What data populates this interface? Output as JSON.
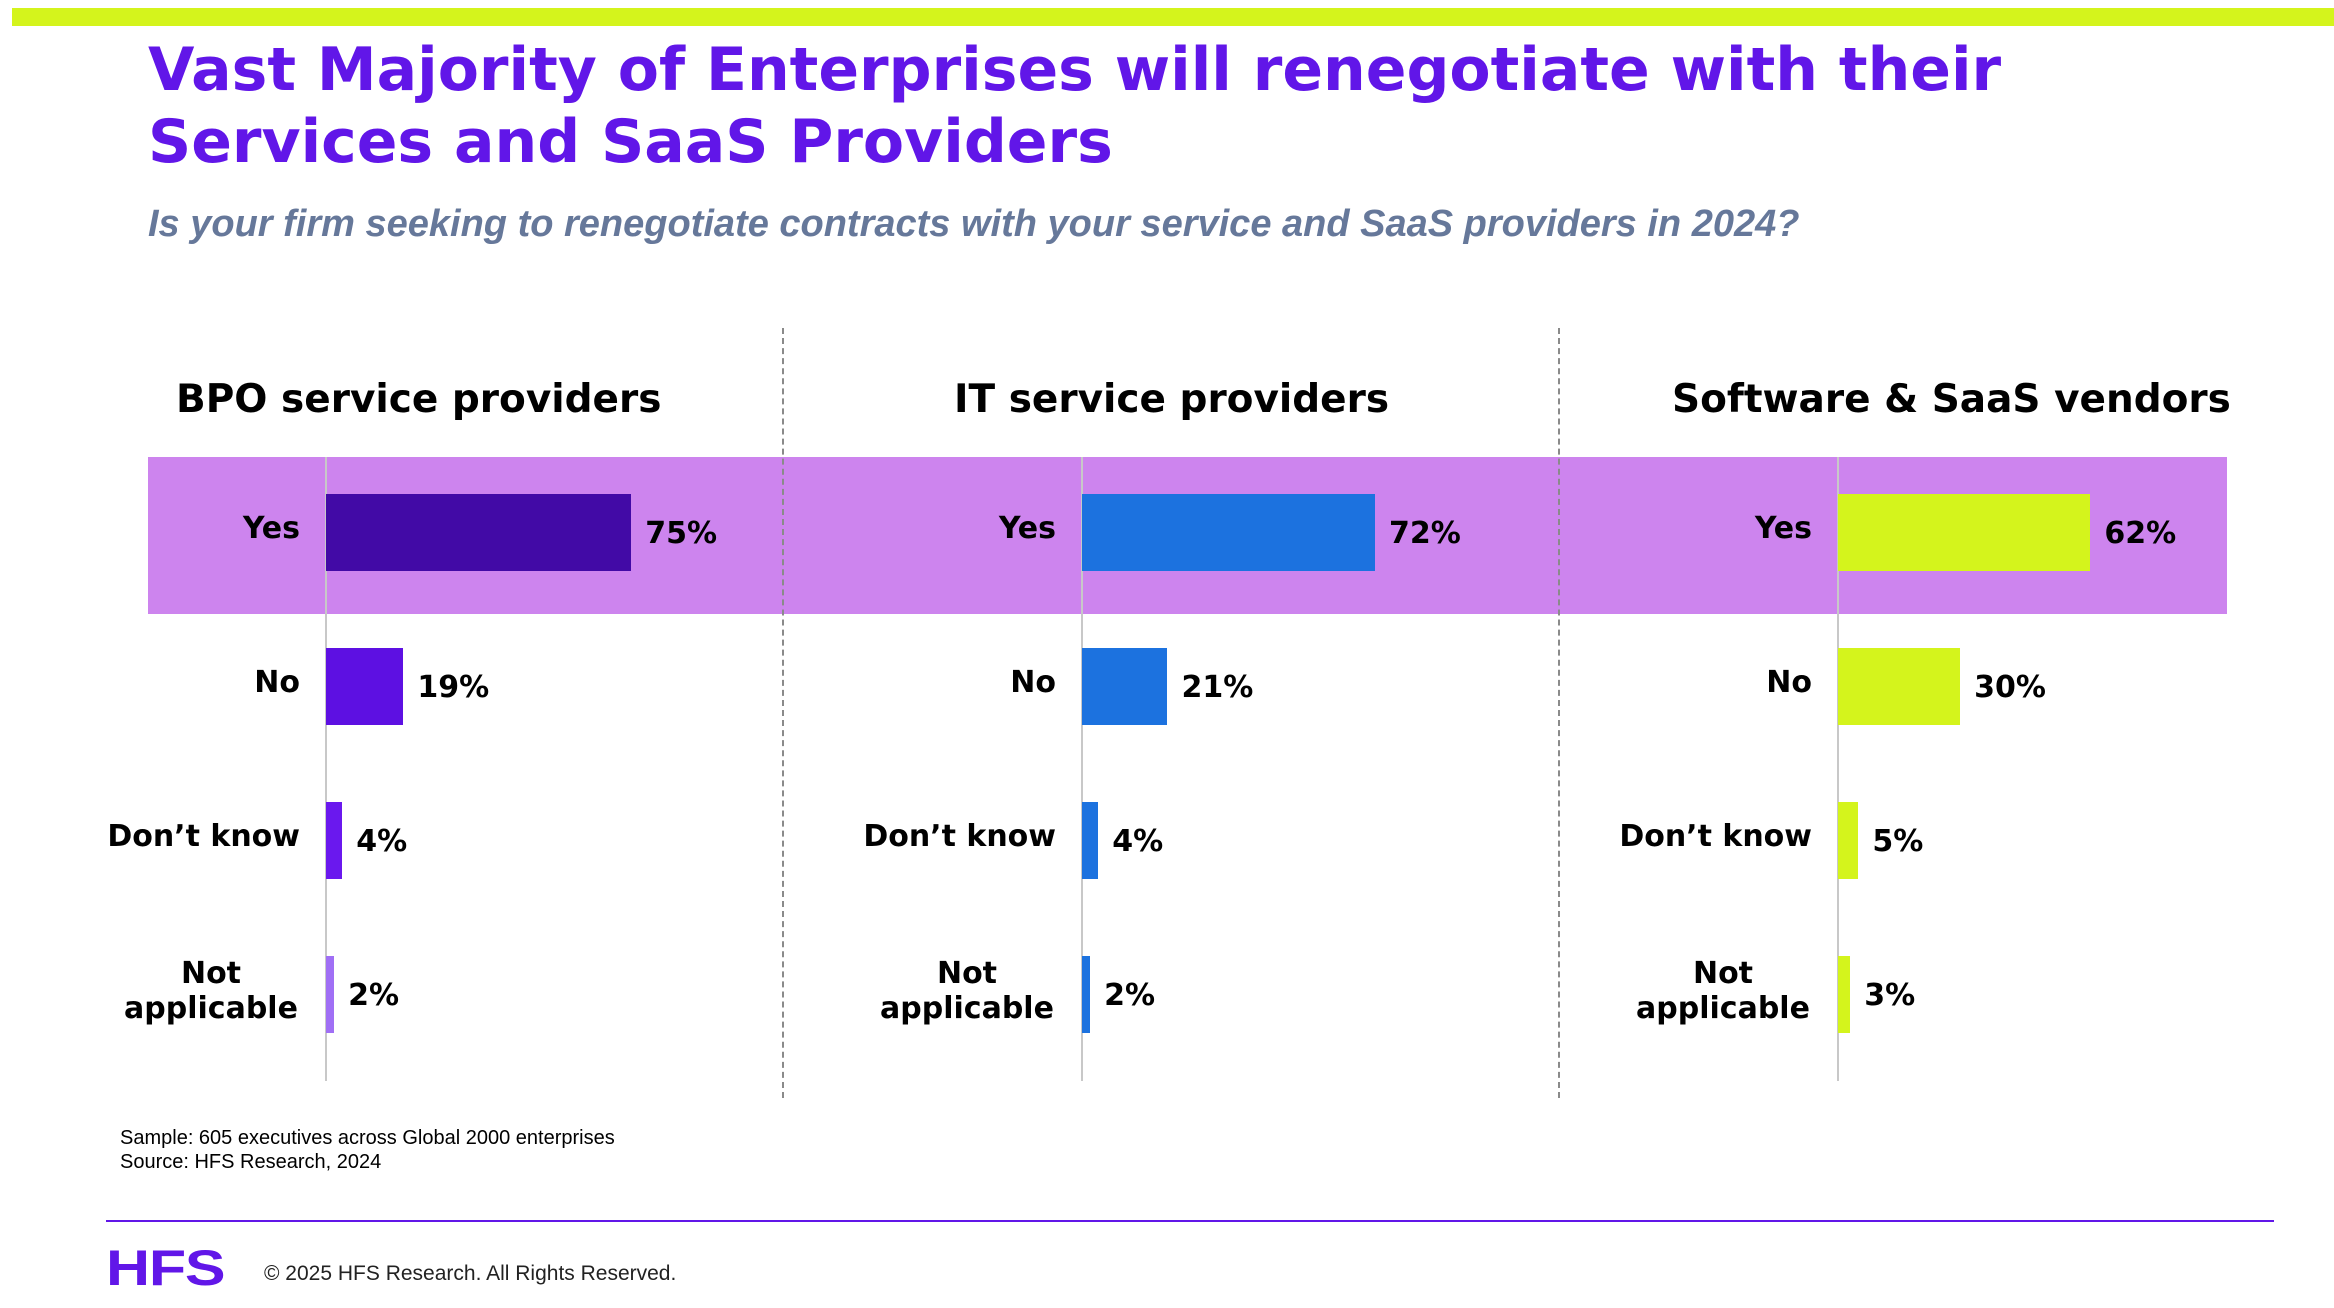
{
  "title": "Vast Majority of Enterprises will renegotiate with their Services and SaaS Providers",
  "subtitle": "Is your firm seeking to renegotiate contracts with your service and SaaS providers in 2024?",
  "colors": {
    "accent_bar": "#d4f41c",
    "title": "#6116e8",
    "subtitle": "#66789a",
    "highlight_band": "#cd84ee",
    "footer_line": "#6116e8",
    "logo": "#6116e8"
  },
  "chart_data": [
    {
      "type": "bar",
      "orientation": "horizontal",
      "title": "BPO service providers",
      "categories": [
        "Yes",
        "No",
        "Don’t know",
        "Not applicable"
      ],
      "values": [
        75,
        19,
        4,
        2
      ],
      "value_labels": [
        "75%",
        "19%",
        "4%",
        "2%"
      ],
      "colors": [
        "#420aa6",
        "#5d10e2",
        "#6a18ee",
        "#a06ff5"
      ],
      "xlim": [
        0,
        100
      ],
      "unit": "%",
      "highlighted_category": "Yes",
      "grid": false
    },
    {
      "type": "bar",
      "orientation": "horizontal",
      "title": "IT service providers",
      "categories": [
        "Yes",
        "No",
        "Don’t know",
        "Not applicable"
      ],
      "values": [
        72,
        21,
        4,
        2
      ],
      "value_labels": [
        "72%",
        "21%",
        "4%",
        "2%"
      ],
      "colors": [
        "#1c72df",
        "#1c72df",
        "#1c72df",
        "#1c72df"
      ],
      "xlim": [
        0,
        100
      ],
      "unit": "%",
      "highlighted_category": "Yes",
      "grid": false
    },
    {
      "type": "bar",
      "orientation": "horizontal",
      "title": "Software & SaaS vendors",
      "categories": [
        "Yes",
        "No",
        "Don’t know",
        "Not applicable"
      ],
      "values": [
        62,
        30,
        5,
        3
      ],
      "value_labels": [
        "62%",
        "30%",
        "5%",
        "3%"
      ],
      "colors": [
        "#d4f41c",
        "#d4f41c",
        "#d4f41c",
        "#d4f41c"
      ],
      "xlim": [
        0,
        100
      ],
      "unit": "%",
      "highlighted_category": "Yes",
      "grid": false
    }
  ],
  "notes": {
    "sample": "Sample: 605 executives across Global 2000 enterprises",
    "source": "Source: HFS Research, 2024"
  },
  "footer": {
    "logo_text": "HFS",
    "copyright": "© 2025 HFS Research. All Rights Reserved."
  }
}
